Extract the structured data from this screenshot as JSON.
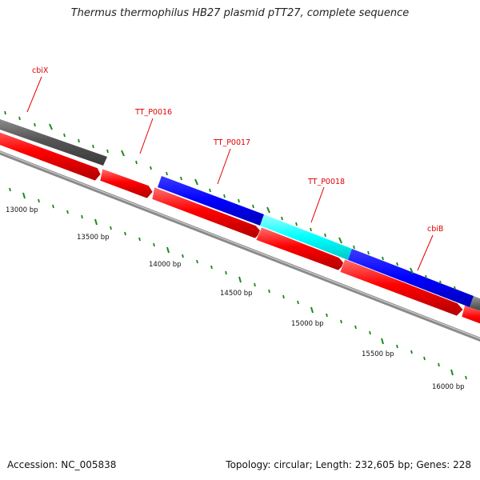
{
  "title": "Thermus thermophilus HB27 plasmid pTT27, complete sequence",
  "accession": "Accession: NC_005838",
  "summary": "Topology: circular; Length: 232,605 bp; Genes: 228",
  "colors": {
    "background": "#ffffff",
    "gene_label": "#e00000",
    "tick": "#1a8a1a",
    "forward_dark": "#555555",
    "reverse_red": "#ff0000",
    "blue_gene": "#0000ff",
    "cyan_gene": "#00ffff",
    "backbone": "#808080"
  },
  "gene_labels": [
    "cbiX",
    "TT_P0016",
    "TT_P0017",
    "TT_P0018",
    "cbiB"
  ],
  "scale_labels": [
    "13000 bp",
    "13500 bp",
    "14000 bp",
    "14500 bp",
    "15000 bp",
    "15500 bp",
    "16000 bp"
  ]
}
